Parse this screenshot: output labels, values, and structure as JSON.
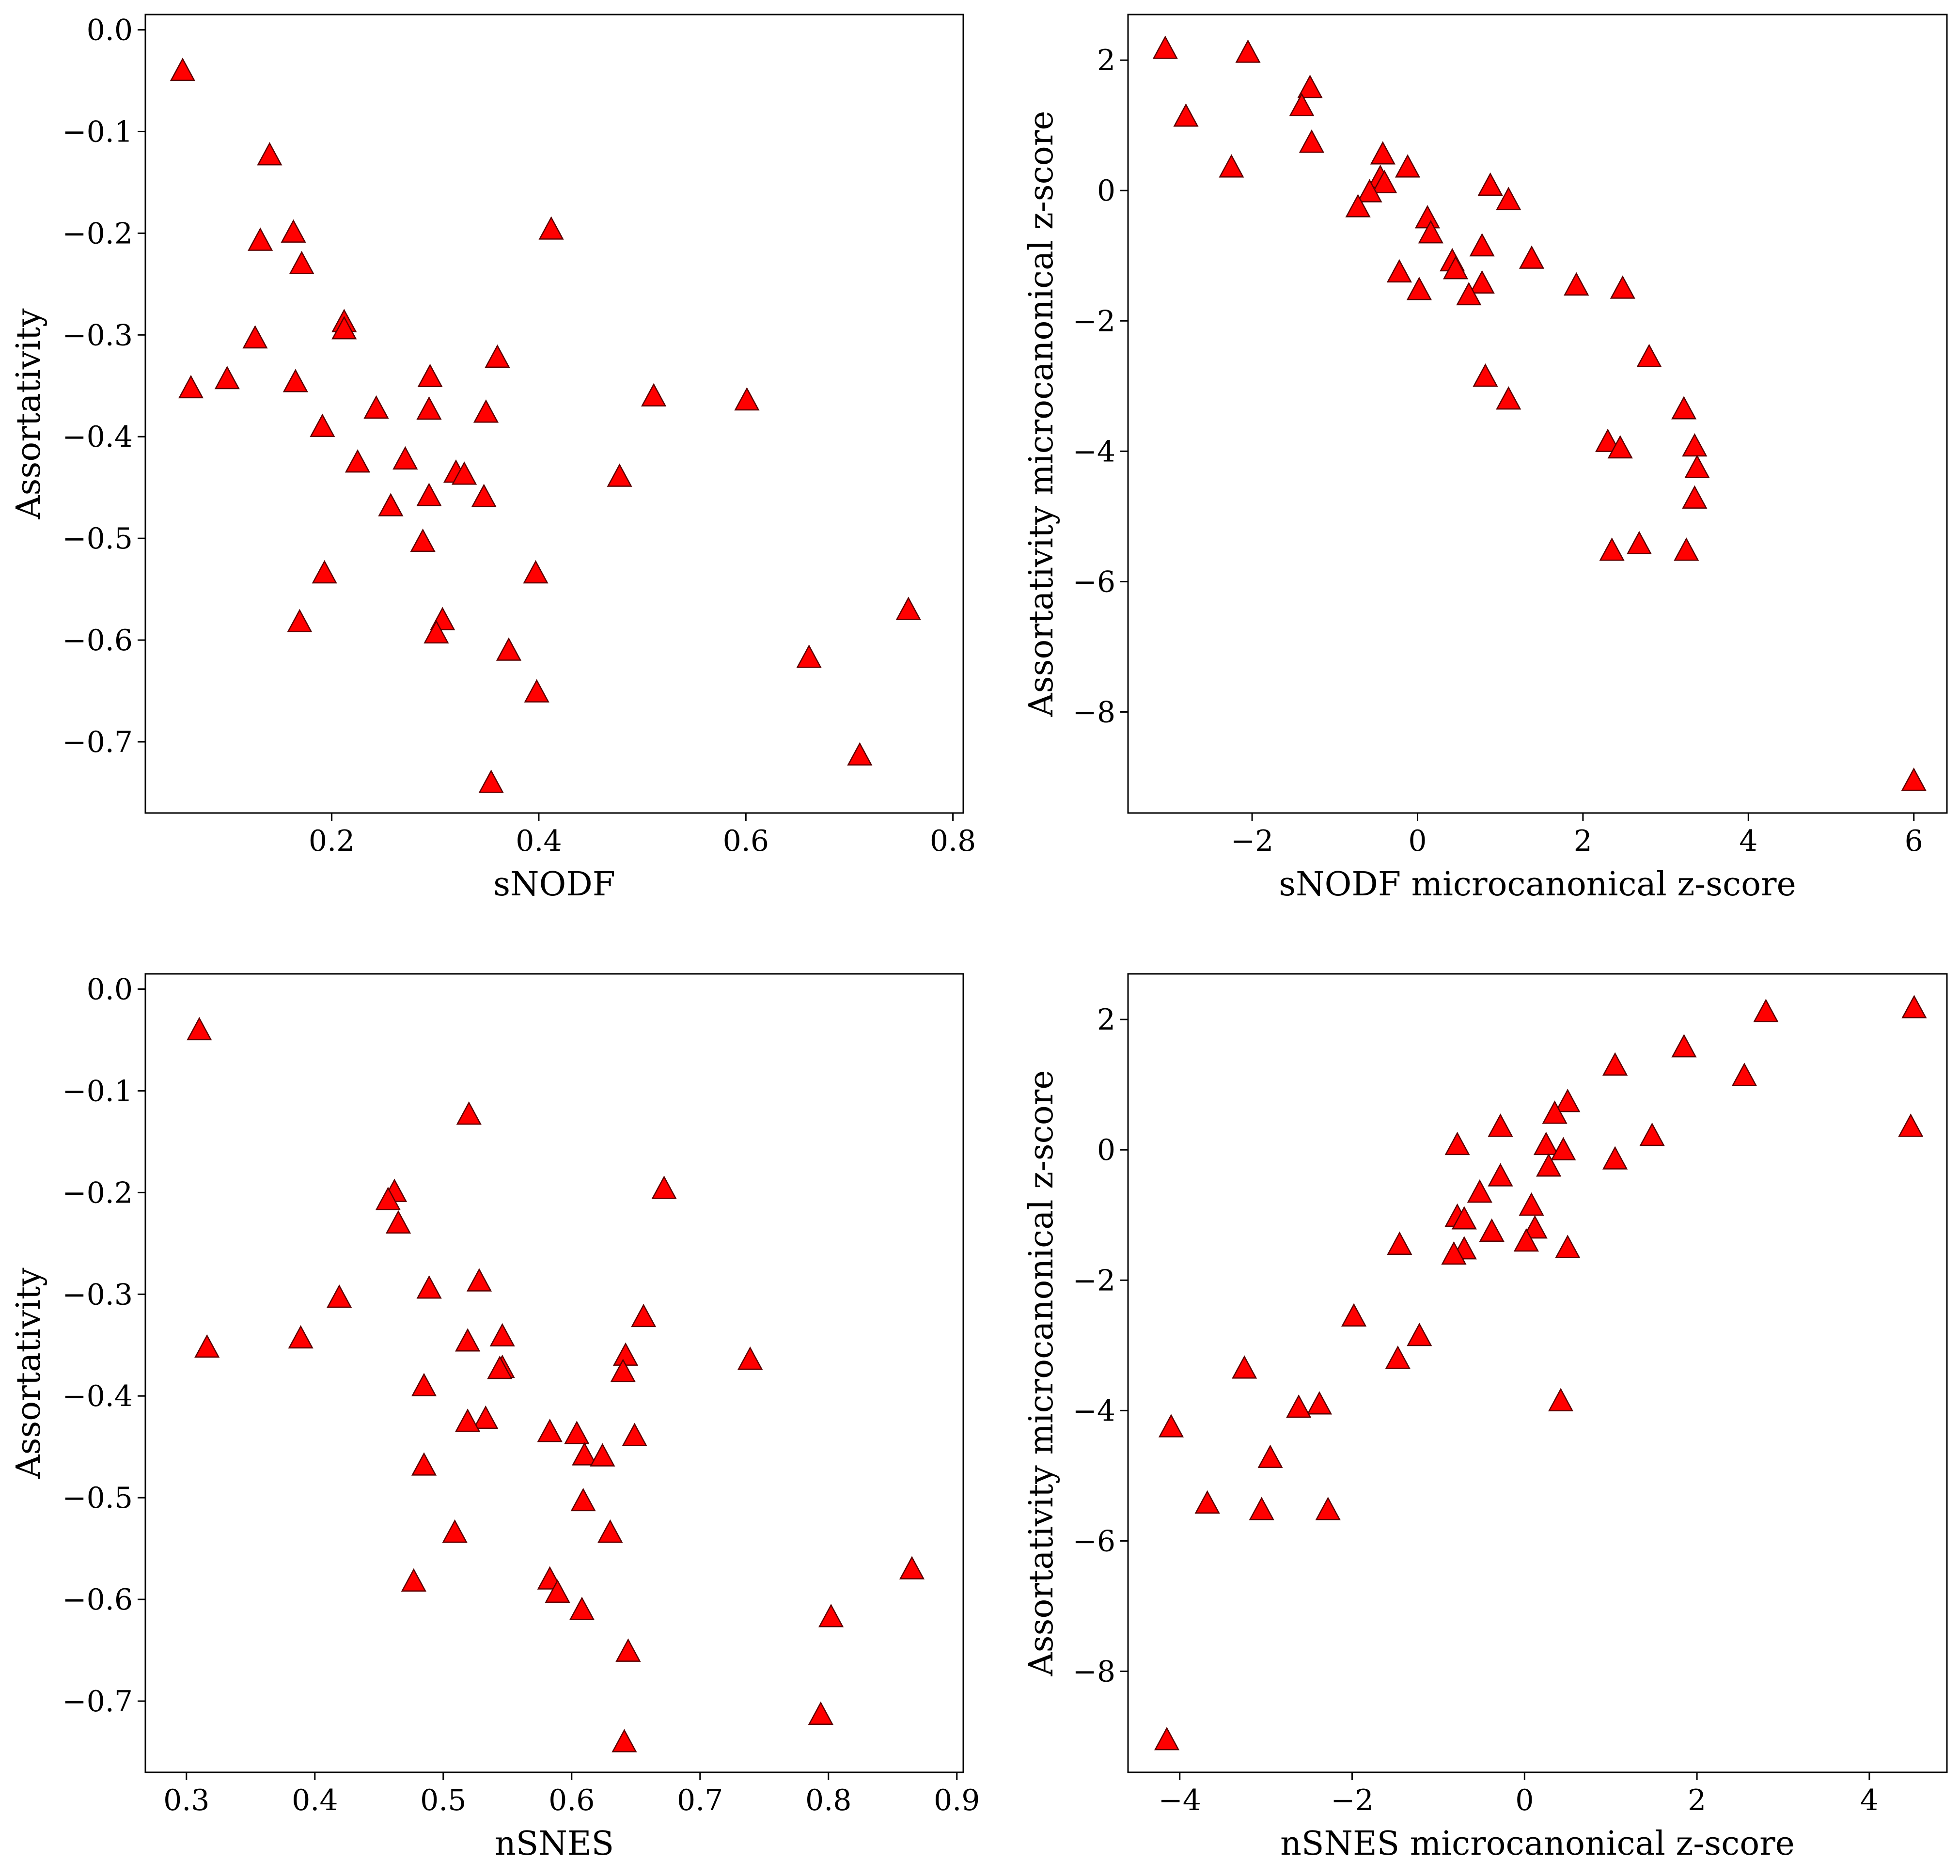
{
  "figure": {
    "background": "#ffffff",
    "marker_color": "#ff0000",
    "marker_edge": "#5a0000",
    "marker": "triangle-up"
  },
  "chart_data": [
    {
      "id": "p1",
      "type": "scatter",
      "title": "",
      "xlabel": "sNODF",
      "ylabel": "Assortativity",
      "xlim": [
        0.02,
        0.81
      ],
      "ylim": [
        -0.77,
        0.015
      ],
      "xticks": [
        0.2,
        0.4,
        0.6,
        0.8
      ],
      "xtick_labels": [
        "0.2",
        "0.4",
        "0.6",
        "0.8"
      ],
      "yticks": [
        0.0,
        -0.1,
        -0.2,
        -0.3,
        -0.4,
        -0.5,
        -0.6,
        -0.7
      ],
      "ytick_labels": [
        "0.0",
        "−0.1",
        "−0.2",
        "−0.3",
        "−0.4",
        "−0.5",
        "−0.6",
        "−0.7"
      ],
      "points": [
        [
          0.056,
          -0.04
        ],
        [
          0.14,
          -0.123
        ],
        [
          0.412,
          -0.196
        ],
        [
          0.163,
          -0.199
        ],
        [
          0.131,
          -0.207
        ],
        [
          0.171,
          -0.23
        ],
        [
          0.212,
          -0.287
        ],
        [
          0.212,
          -0.294
        ],
        [
          0.126,
          -0.303
        ],
        [
          0.36,
          -0.322
        ],
        [
          0.295,
          -0.341
        ],
        [
          0.099,
          -0.343
        ],
        [
          0.165,
          -0.346
        ],
        [
          0.064,
          -0.352
        ],
        [
          0.511,
          -0.36
        ],
        [
          0.601,
          -0.364
        ],
        [
          0.243,
          -0.372
        ],
        [
          0.294,
          -0.373
        ],
        [
          0.349,
          -0.376
        ],
        [
          0.191,
          -0.39
        ],
        [
          0.271,
          -0.422
        ],
        [
          0.225,
          -0.425
        ],
        [
          0.32,
          -0.435
        ],
        [
          0.328,
          -0.437
        ],
        [
          0.478,
          -0.439
        ],
        [
          0.294,
          -0.458
        ],
        [
          0.347,
          -0.459
        ],
        [
          0.257,
          -0.468
        ],
        [
          0.288,
          -0.503
        ],
        [
          0.193,
          -0.534
        ],
        [
          0.397,
          -0.534
        ],
        [
          0.757,
          -0.57
        ],
        [
          0.169,
          -0.582
        ],
        [
          0.307,
          -0.58
        ],
        [
          0.301,
          -0.593
        ],
        [
          0.371,
          -0.61
        ],
        [
          0.661,
          -0.617
        ],
        [
          0.398,
          -0.651
        ],
        [
          0.71,
          -0.713
        ],
        [
          0.354,
          -0.74
        ]
      ]
    },
    {
      "id": "p2",
      "type": "scatter",
      "title": "",
      "xlabel": "sNODF microcanonical z-score",
      "ylabel": "Assortativity microcanonical z-score",
      "xlim": [
        -3.5,
        6.4
      ],
      "ylim": [
        -9.55,
        2.7
      ],
      "xticks": [
        -2,
        0,
        2,
        4,
        6
      ],
      "xtick_labels": [
        "−2",
        "0",
        "2",
        "4",
        "6"
      ],
      "yticks": [
        2,
        0,
        -2,
        -4,
        -6,
        -8
      ],
      "ytick_labels": [
        "2",
        "0",
        "−2",
        "−4",
        "−6",
        "−8"
      ],
      "points": [
        [
          -3.05,
          2.18
        ],
        [
          -2.05,
          2.12
        ],
        [
          -2.8,
          1.14
        ],
        [
          -1.3,
          1.58
        ],
        [
          -1.4,
          1.3
        ],
        [
          -1.28,
          0.74
        ],
        [
          -2.25,
          0.36
        ],
        [
          -0.42,
          0.56
        ],
        [
          -0.12,
          0.36
        ],
        [
          -0.45,
          0.2
        ],
        [
          -0.4,
          0.12
        ],
        [
          -0.58,
          -0.02
        ],
        [
          0.88,
          0.08
        ],
        [
          1.1,
          -0.14
        ],
        [
          -0.72,
          -0.25
        ],
        [
          0.12,
          -0.42
        ],
        [
          0.16,
          -0.65
        ],
        [
          0.78,
          -0.85
        ],
        [
          0.42,
          -1.08
        ],
        [
          1.38,
          -1.04
        ],
        [
          0.46,
          -1.2
        ],
        [
          -0.22,
          -1.25
        ],
        [
          0.78,
          -1.42
        ],
        [
          1.92,
          -1.45
        ],
        [
          2.48,
          -1.5
        ],
        [
          0.02,
          -1.52
        ],
        [
          0.62,
          -1.6
        ],
        [
          2.8,
          -2.55
        ],
        [
          0.82,
          -2.85
        ],
        [
          1.1,
          -3.2
        ],
        [
          3.22,
          -3.35
        ],
        [
          2.3,
          -3.85
        ],
        [
          2.45,
          -3.95
        ],
        [
          3.35,
          -3.92
        ],
        [
          3.38,
          -4.25
        ],
        [
          3.35,
          -4.72
        ],
        [
          2.68,
          -5.42
        ],
        [
          2.35,
          -5.52
        ],
        [
          3.25,
          -5.52
        ],
        [
          6.0,
          -9.05
        ]
      ]
    },
    {
      "id": "p3",
      "type": "scatter",
      "title": "",
      "xlabel": "nSNES",
      "ylabel": "Assortativity",
      "xlim": [
        0.268,
        0.905
      ],
      "ylim": [
        -0.77,
        0.015
      ],
      "xticks": [
        0.3,
        0.4,
        0.5,
        0.6,
        0.7,
        0.8,
        0.9
      ],
      "xtick_labels": [
        "0.3",
        "0.4",
        "0.5",
        "0.6",
        "0.7",
        "0.8",
        "0.9"
      ],
      "yticks": [
        0.0,
        -0.1,
        -0.2,
        -0.3,
        -0.4,
        -0.5,
        -0.6,
        -0.7
      ],
      "ytick_labels": [
        "0.0",
        "−0.1",
        "−0.2",
        "−0.3",
        "−0.4",
        "−0.5",
        "−0.6",
        "−0.7"
      ],
      "points": [
        [
          0.31,
          -0.04
        ],
        [
          0.52,
          -0.123
        ],
        [
          0.672,
          -0.196
        ],
        [
          0.462,
          -0.199
        ],
        [
          0.457,
          -0.207
        ],
        [
          0.465,
          -0.23
        ],
        [
          0.528,
          -0.287
        ],
        [
          0.489,
          -0.294
        ],
        [
          0.419,
          -0.303
        ],
        [
          0.656,
          -0.322
        ],
        [
          0.546,
          -0.341
        ],
        [
          0.389,
          -0.343
        ],
        [
          0.519,
          -0.346
        ],
        [
          0.316,
          -0.352
        ],
        [
          0.642,
          -0.36
        ],
        [
          0.739,
          -0.364
        ],
        [
          0.546,
          -0.372
        ],
        [
          0.544,
          -0.373
        ],
        [
          0.64,
          -0.376
        ],
        [
          0.485,
          -0.39
        ],
        [
          0.533,
          -0.422
        ],
        [
          0.519,
          -0.425
        ],
        [
          0.583,
          -0.435
        ],
        [
          0.604,
          -0.437
        ],
        [
          0.649,
          -0.439
        ],
        [
          0.61,
          -0.458
        ],
        [
          0.624,
          -0.459
        ],
        [
          0.485,
          -0.468
        ],
        [
          0.609,
          -0.503
        ],
        [
          0.509,
          -0.534
        ],
        [
          0.63,
          -0.534
        ],
        [
          0.865,
          -0.57
        ],
        [
          0.477,
          -0.582
        ],
        [
          0.583,
          -0.58
        ],
        [
          0.589,
          -0.593
        ],
        [
          0.608,
          -0.61
        ],
        [
          0.802,
          -0.617
        ],
        [
          0.644,
          -0.651
        ],
        [
          0.794,
          -0.713
        ],
        [
          0.641,
          -0.74
        ]
      ]
    },
    {
      "id": "p4",
      "type": "scatter",
      "title": "",
      "xlabel": "nSNES microcanonical z-score",
      "ylabel": "Assortativity microcanonical z-score",
      "xlim": [
        -4.6,
        4.9
      ],
      "ylim": [
        -9.55,
        2.7
      ],
      "xticks": [
        -4,
        -2,
        0,
        2,
        4
      ],
      "xtick_labels": [
        "−4",
        "−2",
        "0",
        "2",
        "4"
      ],
      "yticks": [
        2,
        0,
        -2,
        -4,
        -6,
        -8
      ],
      "ytick_labels": [
        "2",
        "0",
        "−2",
        "−4",
        "−6",
        "−8"
      ],
      "points": [
        [
          4.52,
          2.18
        ],
        [
          2.8,
          2.12
        ],
        [
          2.55,
          1.14
        ],
        [
          1.85,
          1.58
        ],
        [
          1.05,
          1.3
        ],
        [
          0.5,
          0.74
        ],
        [
          4.48,
          0.36
        ],
        [
          0.35,
          0.56
        ],
        [
          -0.28,
          0.36
        ],
        [
          1.48,
          0.22
        ],
        [
          -0.78,
          0.08
        ],
        [
          0.25,
          0.08
        ],
        [
          0.45,
          0.0
        ],
        [
          1.05,
          -0.14
        ],
        [
          0.28,
          -0.25
        ],
        [
          -0.28,
          -0.4
        ],
        [
          -0.52,
          -0.65
        ],
        [
          0.08,
          -0.85
        ],
        [
          -0.78,
          -1.02
        ],
        [
          -0.7,
          -1.06
        ],
        [
          0.12,
          -1.2
        ],
        [
          -0.38,
          -1.25
        ],
        [
          0.02,
          -1.4
        ],
        [
          -1.45,
          -1.45
        ],
        [
          0.5,
          -1.5
        ],
        [
          -0.7,
          -1.52
        ],
        [
          -0.82,
          -1.6
        ],
        [
          -1.98,
          -2.55
        ],
        [
          -1.22,
          -2.85
        ],
        [
          -1.47,
          -3.2
        ],
        [
          -3.25,
          -3.35
        ],
        [
          -2.38,
          -3.9
        ],
        [
          -2.62,
          -3.95
        ],
        [
          0.42,
          -3.85
        ],
        [
          -4.1,
          -4.25
        ],
        [
          -2.95,
          -4.72
        ],
        [
          -3.68,
          -5.42
        ],
        [
          -3.05,
          -5.52
        ],
        [
          -2.28,
          -5.52
        ],
        [
          -4.15,
          -9.05
        ]
      ]
    }
  ]
}
